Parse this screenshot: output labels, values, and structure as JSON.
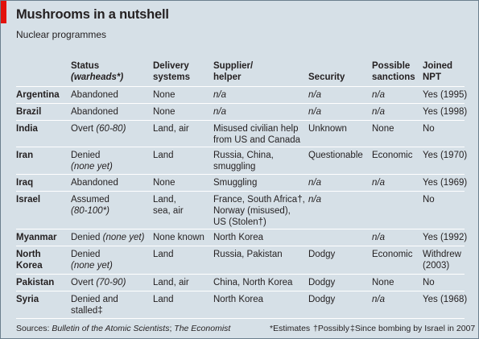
{
  "title": "Mushrooms in a nutshell",
  "subtitle": "Nuclear programmes",
  "headers": {
    "status": "Status",
    "status_sub": "(warheads*)",
    "delivery_1": "Delivery",
    "delivery_2": "systems",
    "supplier_1": "Supplier/",
    "supplier_2": "helper",
    "security": "Security",
    "sanctions_1": "Possible",
    "sanctions_2": "sanctions",
    "npt_1": "Joined",
    "npt_2": "NPT"
  },
  "rows": [
    {
      "country": "Argentina",
      "status": "Abandoned",
      "delivery": "None",
      "supplier": "n/a",
      "security": "n/a",
      "sanctions": "n/a",
      "npt": "Yes (1995)"
    },
    {
      "country": "Brazil",
      "status": "Abandoned",
      "delivery": "None",
      "supplier": "n/a",
      "security": "n/a",
      "sanctions": "n/a",
      "npt": "Yes (1998)"
    },
    {
      "country": "India",
      "status": "Overt",
      "status_note": "(60-80)",
      "delivery": "Land, air",
      "supplier_1": "Misused civilian help",
      "supplier_2": "from US and Canada",
      "security": "Unknown",
      "sanctions": "None",
      "npt": "No"
    },
    {
      "country": "Iran",
      "status_1": "Denied",
      "status_2": "(none yet)",
      "delivery": "Land",
      "supplier_1": "Russia, China,",
      "supplier_2": "smuggling",
      "security": "Questionable",
      "sanctions": "Economic",
      "npt": "Yes (1970)"
    },
    {
      "country": "Iraq",
      "status": "Abandoned",
      "delivery": "None",
      "supplier": "Smuggling",
      "security": "n/a",
      "sanctions": "n/a",
      "npt": "Yes (1969)"
    },
    {
      "country": "Israel",
      "status_1": "Assumed",
      "status_2": "(80-100*)",
      "delivery_1": "Land,",
      "delivery_2": "sea, air",
      "supplier_1": "France, South Africa†,",
      "supplier_2": "Norway (misused),",
      "supplier_3": "US (Stolen†)",
      "security": "n/a",
      "sanctions": "",
      "npt": "No"
    },
    {
      "country": "Myanmar",
      "status": "Denied",
      "status_note": "(none yet)",
      "delivery": "None known",
      "supplier": "North Korea",
      "security": "",
      "sanctions": "n/a",
      "npt": "Yes (1992)"
    },
    {
      "country_1": "North",
      "country_2": "Korea",
      "status_1": "Denied",
      "status_2": "(none yet)",
      "delivery": "Land",
      "supplier": "Russia, Pakistan",
      "security": "Dodgy",
      "sanctions": "Economic",
      "npt_1": "Withdrew",
      "npt_2": "(2003)"
    },
    {
      "country": "Pakistan",
      "status": "Overt",
      "status_note": "(70-90)",
      "delivery": "Land, air",
      "supplier": "China, North Korea",
      "security": "Dodgy",
      "sanctions": "None",
      "npt": "No"
    },
    {
      "country": "Syria",
      "status_1": "Denied and",
      "status_2": "stalled‡",
      "delivery": "Land",
      "supplier": "North Korea",
      "security": "Dodgy",
      "sanctions": "n/a",
      "npt": "Yes (1968)"
    }
  ],
  "footer": {
    "sources_prefix": "Sources:",
    "sources_a": "Bulletin of the Atomic Scientists",
    "sources_sep": ";",
    "sources_b": "The Economist",
    "note_estimates": "*Estimates",
    "note_possibly": "†Possibly",
    "note_bombing": "‡Since bombing by Israel in 2007"
  },
  "colors": {
    "background": "#d6e0e7",
    "accent": "#e3120b",
    "rule": "#ffffff"
  }
}
